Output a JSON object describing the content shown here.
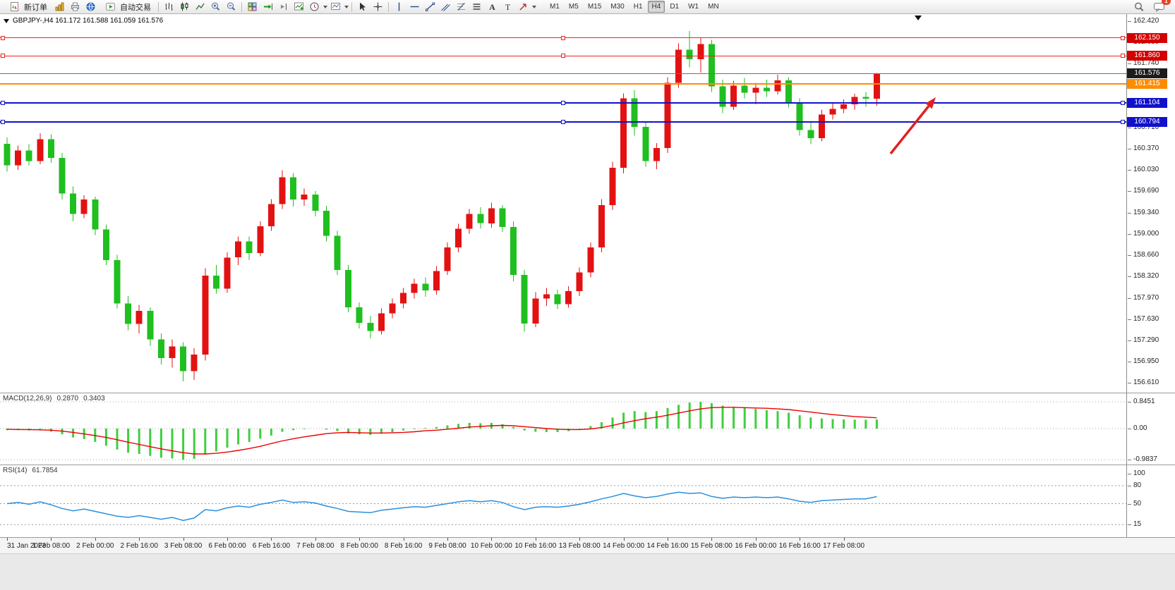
{
  "toolbar": {
    "new_order": "新订单",
    "autotrading": "自动交易",
    "timeframes": [
      "M1",
      "M5",
      "M15",
      "M30",
      "H1",
      "H4",
      "D1",
      "W1",
      "MN"
    ],
    "active_timeframe": "H4",
    "notification_count": "1"
  },
  "icons": {
    "letter_a": "A",
    "letter_t": "T"
  },
  "chart": {
    "title": "GBPJPY-,H4 161.172 161.588 161.059 161.576"
  },
  "price_axis": [
    "162.420",
    "162.080",
    "161.740",
    "160.710",
    "160.370",
    "160.030",
    "159.690",
    "159.340",
    "159.000",
    "158.660",
    "158.320",
    "157.970",
    "157.630",
    "157.290",
    "156.950",
    "156.610"
  ],
  "hlines": [
    {
      "label": "162.150",
      "value": 162.15,
      "color": "#ee2222",
      "width": 1,
      "tag": "#d40000",
      "handles": true
    },
    {
      "label": "161.860",
      "value": 161.86,
      "color": "#ee2222",
      "width": 1,
      "tag": "#d40000",
      "handles": true
    },
    {
      "label": "161.576",
      "value": 161.576,
      "color": "#707070",
      "width": 1,
      "tag": "#1c1c1c",
      "handles": false
    },
    {
      "label": "161.415",
      "value": 161.415,
      "color": "#ff8c00",
      "width": 2,
      "tag": "#ff8c00",
      "handles": false
    },
    {
      "label": "161.104",
      "value": 161.104,
      "color": "#1111cc",
      "width": 2,
      "tag": "#1111cc",
      "handles": true
    },
    {
      "label": "160.794",
      "value": 160.794,
      "color": "#1111cc",
      "width": 2,
      "tag": "#1111cc",
      "handles": true
    }
  ],
  "macd": {
    "label": "MACD(12,26,9)",
    "value1": "0.2870",
    "value2": "0.3403",
    "axis": [
      {
        "t": "0.8451",
        "v": 0.8451
      },
      {
        "t": "0.00",
        "v": 0
      },
      {
        "t": "-0.9837",
        "v": -0.9837
      }
    ]
  },
  "rsi": {
    "label": "RSI(14)",
    "value": "61.7854",
    "axis": [
      {
        "t": "100",
        "v": 100
      },
      {
        "t": "80",
        "v": 80
      },
      {
        "t": "50",
        "v": 50
      },
      {
        "t": "15",
        "v": 15
      }
    ],
    "levels": [
      80,
      50,
      15
    ]
  },
  "time_axis": [
    "31 Jan 2023",
    "1 Feb 08:00",
    "2 Feb 00:00",
    "2 Feb 16:00",
    "3 Feb 08:00",
    "6 Feb 00:00",
    "6 Feb 16:00",
    "7 Feb 08:00",
    "8 Feb 00:00",
    "8 Feb 16:00",
    "9 Feb 08:00",
    "10 Feb 00:00",
    "10 Feb 16:00",
    "13 Feb 08:00",
    "14 Feb 00:00",
    "14 Feb 16:00",
    "15 Feb 08:00",
    "16 Feb 00:00",
    "16 Feb 16:00",
    "17 Feb 08:00"
  ],
  "chart_data": {
    "type": "candlestick",
    "title": "GBPJPY-,H4",
    "symbol": "GBPJPY-",
    "period": "H4",
    "ohlc_current": {
      "open": 161.172,
      "high": 161.588,
      "low": 161.059,
      "close": 161.576
    },
    "y_axis": {
      "min": 156.436,
      "max": 162.533
    },
    "macd_range": [
      -0.9837,
      0.8451
    ],
    "rsi_range": [
      0,
      100
    ],
    "colors": {
      "bull": "#e31212",
      "bear": "#1fbf1f",
      "macd_hist": "#3ecf3e",
      "macd_signal": "#ee0000",
      "rsi": "#2a8fdc"
    },
    "candles": [
      [
        160.45,
        160.55,
        160.0,
        160.1
      ],
      [
        160.1,
        160.42,
        160.03,
        160.34
      ],
      [
        160.34,
        160.44,
        160.1,
        160.17
      ],
      [
        160.17,
        160.62,
        160.12,
        160.52
      ],
      [
        160.52,
        160.6,
        160.14,
        160.22
      ],
      [
        160.22,
        160.3,
        159.55,
        159.65
      ],
      [
        159.65,
        159.76,
        159.2,
        159.32
      ],
      [
        159.32,
        159.62,
        159.25,
        159.55
      ],
      [
        159.55,
        159.6,
        158.98,
        159.07
      ],
      [
        159.07,
        159.15,
        158.5,
        158.58
      ],
      [
        158.58,
        158.66,
        157.8,
        157.88
      ],
      [
        157.88,
        158.0,
        157.45,
        157.55
      ],
      [
        157.55,
        157.86,
        157.4,
        157.76
      ],
      [
        157.76,
        157.82,
        157.2,
        157.3
      ],
      [
        157.3,
        157.4,
        156.9,
        157.0
      ],
      [
        157.0,
        157.3,
        156.85,
        157.19
      ],
      [
        157.19,
        157.26,
        156.63,
        156.79
      ],
      [
        156.79,
        157.16,
        156.65,
        157.06
      ],
      [
        157.06,
        158.45,
        156.96,
        158.33
      ],
      [
        158.33,
        158.5,
        158.04,
        158.12
      ],
      [
        158.12,
        158.7,
        158.05,
        158.62
      ],
      [
        158.62,
        158.96,
        158.5,
        158.88
      ],
      [
        158.88,
        158.96,
        158.58,
        158.69
      ],
      [
        158.69,
        159.2,
        158.64,
        159.12
      ],
      [
        159.12,
        159.56,
        159.05,
        159.48
      ],
      [
        159.48,
        160.02,
        159.4,
        159.91
      ],
      [
        159.91,
        159.98,
        159.44,
        159.55
      ],
      [
        159.55,
        159.73,
        159.45,
        159.63
      ],
      [
        159.63,
        159.69,
        159.28,
        159.37
      ],
      [
        159.37,
        159.45,
        158.88,
        158.97
      ],
      [
        158.97,
        159.05,
        158.34,
        158.42
      ],
      [
        158.42,
        158.5,
        157.74,
        157.82
      ],
      [
        157.82,
        157.9,
        157.48,
        157.57
      ],
      [
        157.57,
        157.68,
        157.32,
        157.44
      ],
      [
        157.44,
        157.8,
        157.38,
        157.72
      ],
      [
        157.72,
        157.96,
        157.64,
        157.88
      ],
      [
        157.88,
        158.13,
        157.8,
        158.05
      ],
      [
        158.05,
        158.28,
        157.96,
        158.2
      ],
      [
        158.2,
        158.3,
        157.99,
        158.09
      ],
      [
        158.09,
        158.48,
        158.02,
        158.4
      ],
      [
        158.4,
        158.86,
        158.34,
        158.78
      ],
      [
        158.78,
        159.16,
        158.7,
        159.08
      ],
      [
        159.08,
        159.4,
        159.0,
        159.32
      ],
      [
        159.32,
        159.43,
        159.09,
        159.17
      ],
      [
        159.17,
        159.5,
        159.1,
        159.41
      ],
      [
        159.41,
        159.46,
        159.03,
        159.11
      ],
      [
        159.11,
        159.2,
        158.24,
        158.34
      ],
      [
        158.34,
        158.42,
        157.43,
        157.56
      ],
      [
        157.56,
        158.06,
        157.5,
        157.96
      ],
      [
        157.96,
        158.13,
        157.84,
        158.03
      ],
      [
        158.03,
        158.1,
        157.79,
        157.87
      ],
      [
        157.87,
        158.16,
        157.81,
        158.08
      ],
      [
        158.08,
        158.46,
        158.0,
        158.38
      ],
      [
        158.38,
        158.86,
        158.3,
        158.78
      ],
      [
        158.78,
        159.56,
        158.7,
        159.46
      ],
      [
        159.46,
        160.16,
        159.38,
        160.06
      ],
      [
        160.06,
        161.26,
        159.97,
        161.18
      ],
      [
        161.18,
        161.31,
        160.58,
        160.72
      ],
      [
        160.72,
        160.8,
        160.08,
        160.17
      ],
      [
        160.17,
        160.46,
        160.04,
        160.38
      ],
      [
        160.38,
        161.52,
        160.3,
        161.43
      ],
      [
        161.43,
        162.06,
        161.35,
        161.96
      ],
      [
        161.96,
        162.26,
        161.68,
        161.81
      ],
      [
        161.81,
        162.16,
        161.59,
        162.05
      ],
      [
        162.05,
        162.12,
        161.28,
        161.37
      ],
      [
        161.37,
        161.48,
        160.94,
        161.04
      ],
      [
        161.04,
        161.46,
        160.99,
        161.38
      ],
      [
        161.38,
        161.51,
        161.18,
        161.27
      ],
      [
        161.27,
        161.43,
        161.08,
        161.35
      ],
      [
        161.35,
        161.48,
        161.2,
        161.29
      ],
      [
        161.29,
        161.56,
        161.24,
        161.47
      ],
      [
        161.47,
        161.52,
        161.03,
        161.11
      ],
      [
        161.11,
        161.18,
        160.58,
        160.67
      ],
      [
        160.67,
        160.8,
        160.44,
        160.54
      ],
      [
        160.54,
        161.0,
        160.49,
        160.92
      ],
      [
        160.92,
        161.1,
        160.84,
        161.01
      ],
      [
        161.01,
        161.16,
        160.94,
        161.08
      ],
      [
        161.08,
        161.25,
        161.0,
        161.2
      ],
      [
        161.2,
        161.28,
        161.04,
        161.17
      ],
      [
        161.172,
        161.588,
        161.059,
        161.576
      ]
    ],
    "macd": [
      -0.05,
      -0.04,
      -0.06,
      -0.05,
      -0.1,
      -0.18,
      -0.28,
      -0.33,
      -0.42,
      -0.54,
      -0.66,
      -0.76,
      -0.8,
      -0.86,
      -0.92,
      -0.94,
      -0.9837,
      -0.95,
      -0.82,
      -0.72,
      -0.6,
      -0.5,
      -0.42,
      -0.32,
      -0.22,
      -0.1,
      -0.05,
      -0.02,
      0.0,
      -0.03,
      -0.08,
      -0.15,
      -0.18,
      -0.2,
      -0.16,
      -0.11,
      -0.06,
      -0.02,
      0.02,
      0.05,
      0.1,
      0.15,
      0.18,
      0.17,
      0.18,
      0.14,
      0.05,
      -0.06,
      -0.1,
      -0.11,
      -0.11,
      -0.08,
      -0.02,
      0.08,
      0.2,
      0.35,
      0.5,
      0.55,
      0.52,
      0.55,
      0.65,
      0.75,
      0.82,
      0.8451,
      0.8,
      0.72,
      0.68,
      0.65,
      0.62,
      0.58,
      0.55,
      0.5,
      0.42,
      0.35,
      0.32,
      0.3,
      0.29,
      0.28,
      0.28,
      0.287
    ],
    "macd_signal": [
      -0.02,
      -0.03,
      -0.03,
      -0.04,
      -0.05,
      -0.08,
      -0.12,
      -0.17,
      -0.22,
      -0.28,
      -0.35,
      -0.43,
      -0.5,
      -0.57,
      -0.64,
      -0.7,
      -0.76,
      -0.8,
      -0.8,
      -0.78,
      -0.74,
      -0.69,
      -0.63,
      -0.56,
      -0.47,
      -0.39,
      -0.32,
      -0.26,
      -0.21,
      -0.16,
      -0.13,
      -0.12,
      -0.13,
      -0.14,
      -0.14,
      -0.13,
      -0.12,
      -0.1,
      -0.07,
      -0.05,
      -0.02,
      0.01,
      0.05,
      0.07,
      0.09,
      0.1,
      0.09,
      0.06,
      0.03,
      0.0,
      -0.02,
      -0.03,
      -0.03,
      -0.01,
      0.03,
      0.1,
      0.18,
      0.25,
      0.31,
      0.36,
      0.42,
      0.49,
      0.56,
      0.62,
      0.66,
      0.67,
      0.67,
      0.66,
      0.65,
      0.64,
      0.62,
      0.6,
      0.56,
      0.52,
      0.48,
      0.44,
      0.41,
      0.38,
      0.36,
      0.3403
    ],
    "rsi": [
      50,
      52,
      49,
      53,
      48,
      42,
      38,
      41,
      37,
      33,
      29,
      27,
      30,
      27,
      24,
      27,
      22,
      26,
      40,
      38,
      43,
      46,
      44,
      49,
      52,
      56,
      52,
      53,
      51,
      46,
      42,
      37,
      36,
      35,
      39,
      41,
      43,
      45,
      44,
      47,
      50,
      53,
      55,
      53,
      55,
      52,
      45,
      40,
      44,
      45,
      44,
      46,
      49,
      53,
      58,
      62,
      67,
      63,
      60,
      62,
      66,
      69,
      67,
      68,
      62,
      59,
      61,
      60,
      61,
      60,
      61,
      58,
      54,
      52,
      55,
      56,
      57,
      58,
      58,
      61.7854
    ],
    "annotation_arrow": {
      "tail": [
        1262,
        198
      ],
      "head": [
        1326,
        118
      ],
      "color": "#e02020"
    }
  }
}
